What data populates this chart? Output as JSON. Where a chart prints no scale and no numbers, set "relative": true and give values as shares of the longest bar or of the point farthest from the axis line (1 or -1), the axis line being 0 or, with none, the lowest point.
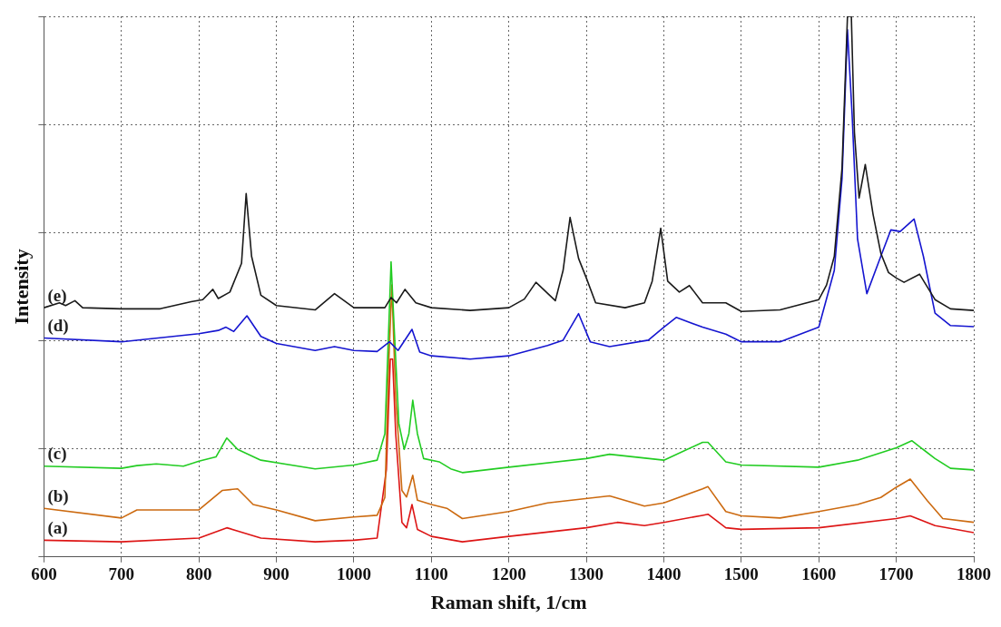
{
  "chart_data": {
    "type": "line",
    "xlabel": "Raman shift, 1/cm",
    "ylabel": "Intensity",
    "relative": true,
    "xlim": [
      600,
      1800
    ],
    "xticks": [
      600,
      700,
      800,
      900,
      1000,
      1100,
      1200,
      1300,
      1400,
      1500,
      1600,
      1700,
      1800
    ],
    "grid": true,
    "legend": false,
    "marker": "none",
    "line_style": "solid",
    "series": [
      {
        "name": "(e)",
        "color": "#1a1a1a",
        "x": [
          600,
          620,
          628,
          640,
          650,
          700,
          750,
          790,
          805,
          818,
          825,
          840,
          855,
          861,
          868,
          880,
          900,
          950,
          975,
          1000,
          1040,
          1048,
          1055,
          1066,
          1080,
          1100,
          1150,
          1200,
          1220,
          1235,
          1260,
          1270,
          1279,
          1290,
          1300,
          1312,
          1350,
          1375,
          1385,
          1396,
          1405,
          1420,
          1433,
          1450,
          1480,
          1500,
          1550,
          1600,
          1610,
          1620,
          1630,
          1637,
          1642,
          1646,
          1652,
          1660,
          1670,
          1680,
          1690,
          1700,
          1710,
          1730,
          1750,
          1770,
          1800
        ],
        "values": [
          0.461,
          0.47,
          0.465,
          0.474,
          0.461,
          0.459,
          0.459,
          0.472,
          0.476,
          0.495,
          0.478,
          0.49,
          0.543,
          0.672,
          0.556,
          0.484,
          0.465,
          0.457,
          0.487,
          0.461,
          0.461,
          0.48,
          0.47,
          0.495,
          0.47,
          0.461,
          0.456,
          0.461,
          0.477,
          0.508,
          0.474,
          0.53,
          0.628,
          0.552,
          0.516,
          0.47,
          0.461,
          0.47,
          0.51,
          0.608,
          0.51,
          0.49,
          0.502,
          0.47,
          0.47,
          0.454,
          0.457,
          0.476,
          0.503,
          0.556,
          0.72,
          1.0,
          1.0,
          0.785,
          0.664,
          0.726,
          0.634,
          0.562,
          0.526,
          0.516,
          0.508,
          0.523,
          0.476,
          0.459,
          0.456
        ]
      },
      {
        "name": "(d)",
        "color": "#1515d0",
        "x": [
          600,
          700,
          800,
          825,
          835,
          845,
          862,
          880,
          900,
          950,
          975,
          1000,
          1030,
          1046,
          1057,
          1075,
          1085,
          1100,
          1150,
          1200,
          1250,
          1270,
          1290,
          1305,
          1330,
          1380,
          1400,
          1416,
          1450,
          1480,
          1500,
          1550,
          1600,
          1620,
          1630,
          1637,
          1643,
          1650,
          1662,
          1680,
          1693,
          1705,
          1723,
          1735,
          1750,
          1770,
          1800
        ],
        "values": [
          0.405,
          0.398,
          0.413,
          0.419,
          0.425,
          0.417,
          0.446,
          0.408,
          0.395,
          0.382,
          0.389,
          0.382,
          0.38,
          0.398,
          0.382,
          0.421,
          0.379,
          0.372,
          0.366,
          0.372,
          0.391,
          0.401,
          0.45,
          0.398,
          0.389,
          0.401,
          0.425,
          0.443,
          0.425,
          0.412,
          0.398,
          0.398,
          0.425,
          0.53,
          0.7,
          0.975,
          0.818,
          0.588,
          0.487,
          0.556,
          0.605,
          0.602,
          0.625,
          0.556,
          0.451,
          0.428,
          0.426
        ]
      },
      {
        "name": "(c)",
        "color": "#22cc22",
        "x": [
          600,
          700,
          720,
          745,
          780,
          800,
          822,
          836,
          850,
          880,
          950,
          1000,
          1030,
          1040,
          1045,
          1048,
          1052,
          1058,
          1065,
          1071,
          1076,
          1082,
          1090,
          1110,
          1125,
          1140,
          1200,
          1300,
          1330,
          1400,
          1450,
          1457,
          1480,
          1500,
          1600,
          1650,
          1700,
          1720,
          1750,
          1770,
          1800
        ],
        "values": [
          0.168,
          0.164,
          0.169,
          0.172,
          0.168,
          0.177,
          0.185,
          0.22,
          0.199,
          0.179,
          0.163,
          0.17,
          0.179,
          0.228,
          0.424,
          0.546,
          0.424,
          0.247,
          0.199,
          0.228,
          0.29,
          0.228,
          0.182,
          0.176,
          0.163,
          0.156,
          0.166,
          0.182,
          0.19,
          0.179,
          0.212,
          0.212,
          0.176,
          0.17,
          0.166,
          0.179,
          0.202,
          0.215,
          0.182,
          0.164,
          0.161
        ]
      },
      {
        "name": "(b)",
        "color": "#cc6a10",
        "x": [
          600,
          700,
          720,
          800,
          830,
          850,
          870,
          900,
          950,
          1000,
          1030,
          1040,
          1045,
          1049,
          1054,
          1062,
          1068,
          1076,
          1082,
          1100,
          1120,
          1140,
          1200,
          1250,
          1330,
          1375,
          1400,
          1450,
          1457,
          1480,
          1500,
          1550,
          1600,
          1650,
          1680,
          1700,
          1718,
          1740,
          1760,
          1800
        ],
        "values": [
          0.09,
          0.072,
          0.087,
          0.087,
          0.123,
          0.126,
          0.097,
          0.087,
          0.067,
          0.074,
          0.077,
          0.11,
          0.359,
          0.503,
          0.294,
          0.123,
          0.111,
          0.151,
          0.105,
          0.097,
          0.09,
          0.071,
          0.084,
          0.1,
          0.113,
          0.094,
          0.1,
          0.126,
          0.13,
          0.084,
          0.076,
          0.072,
          0.084,
          0.097,
          0.11,
          0.129,
          0.144,
          0.104,
          0.071,
          0.064
        ]
      },
      {
        "name": "(a)",
        "color": "#dd1515",
        "x": [
          600,
          700,
          800,
          836,
          850,
          880,
          950,
          1000,
          1030,
          1042,
          1047,
          1050,
          1054,
          1062,
          1068,
          1075,
          1082,
          1100,
          1140,
          1200,
          1300,
          1340,
          1375,
          1400,
          1450,
          1457,
          1480,
          1500,
          1600,
          1700,
          1718,
          1750,
          1800
        ],
        "values": [
          0.031,
          0.028,
          0.035,
          0.054,
          0.048,
          0.035,
          0.028,
          0.031,
          0.035,
          0.162,
          0.366,
          0.366,
          0.228,
          0.064,
          0.054,
          0.097,
          0.051,
          0.038,
          0.028,
          0.038,
          0.054,
          0.064,
          0.058,
          0.064,
          0.077,
          0.079,
          0.054,
          0.051,
          0.054,
          0.071,
          0.076,
          0.058,
          0.045
        ]
      }
    ]
  }
}
